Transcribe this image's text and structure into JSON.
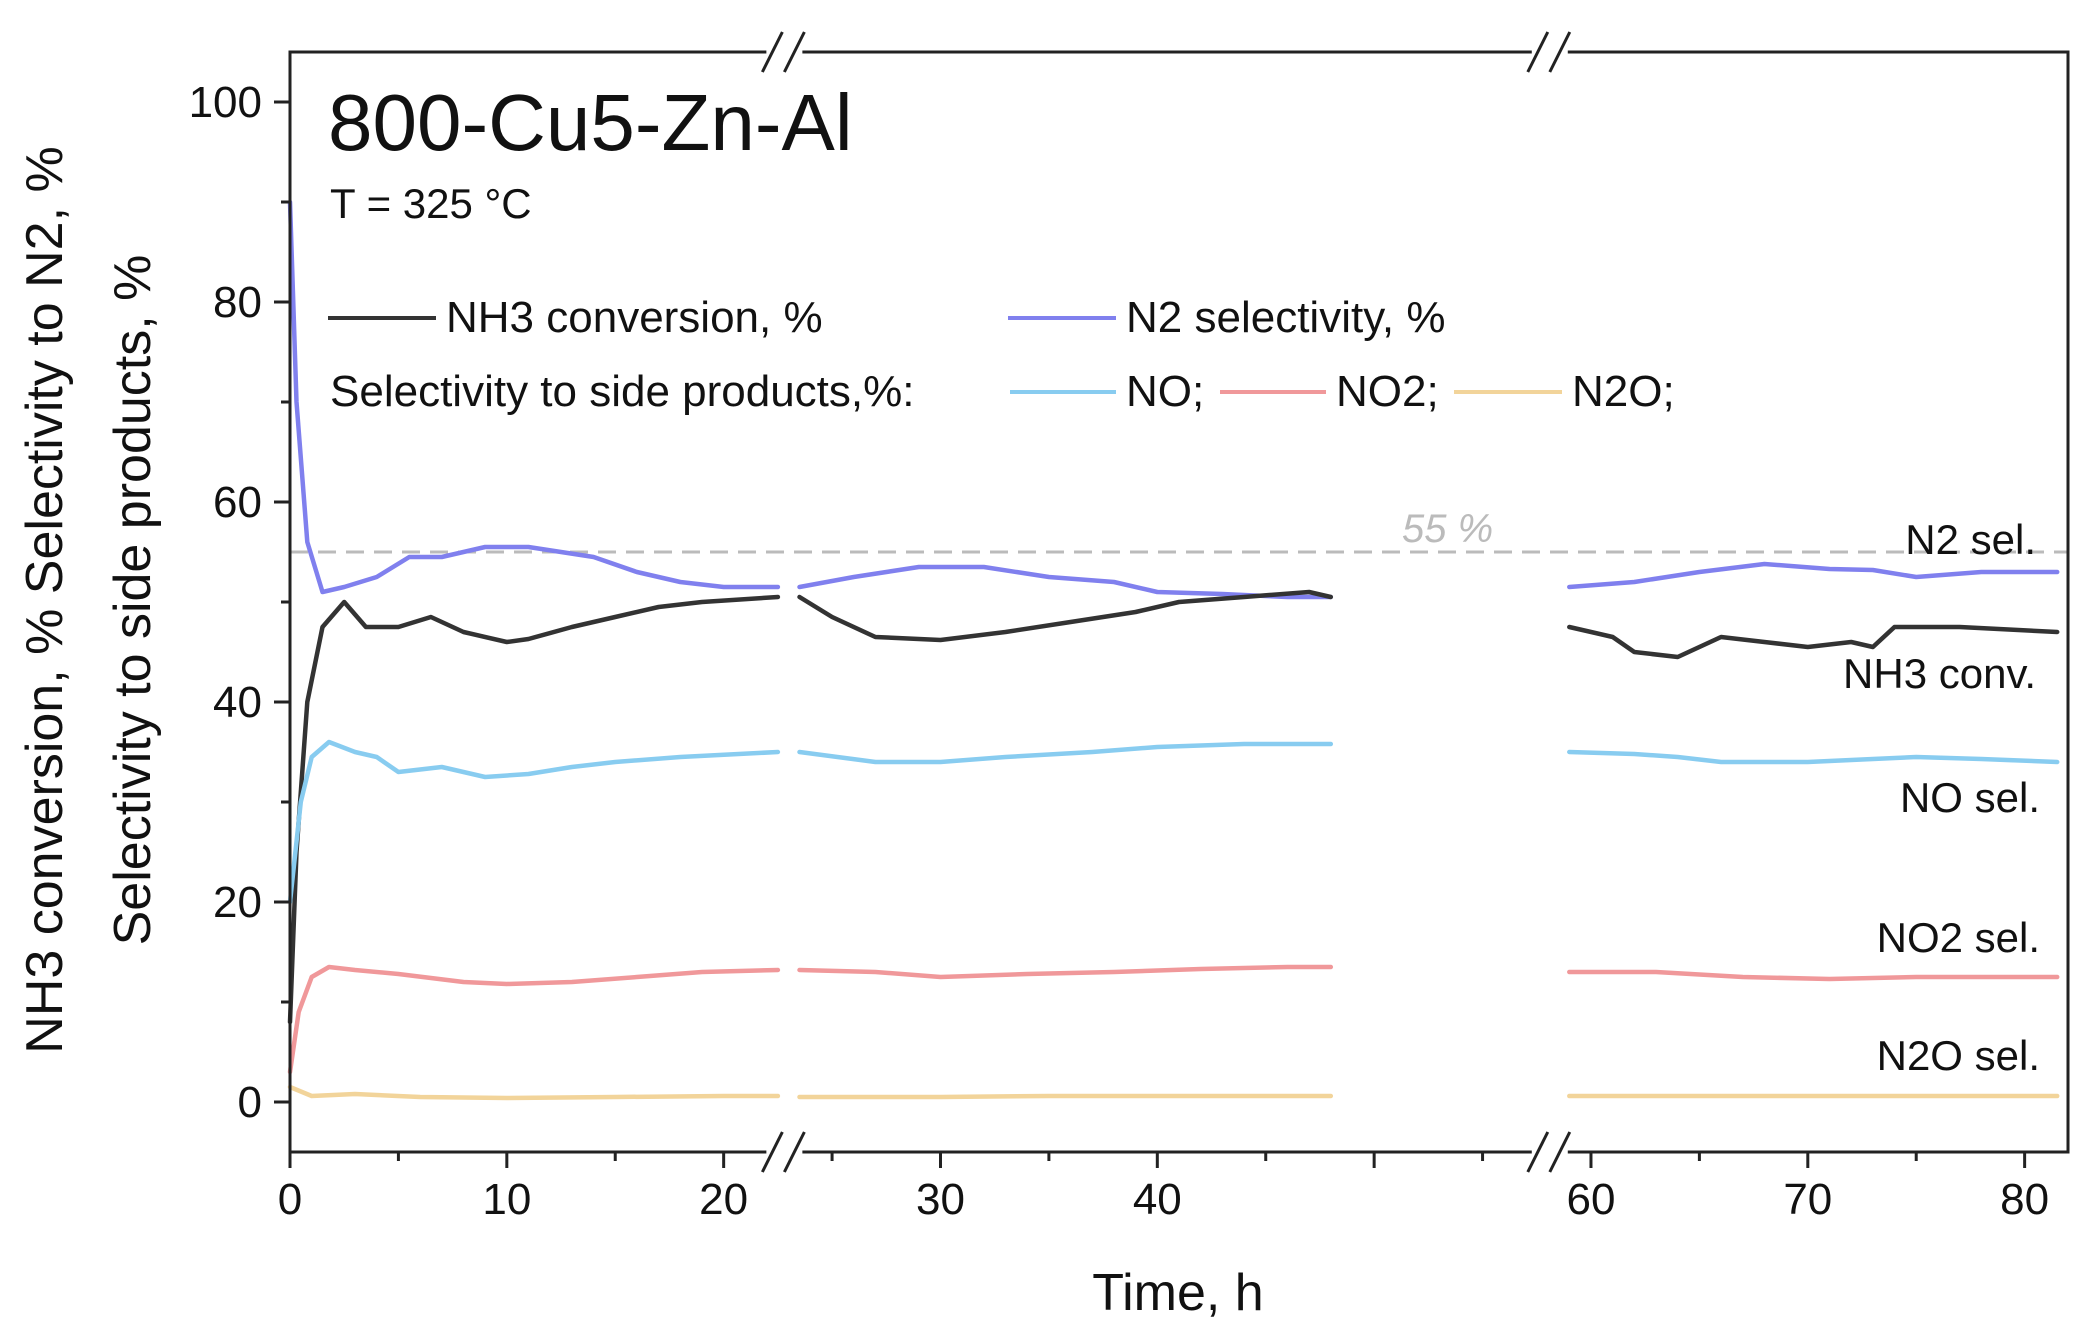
{
  "chart_data": {
    "type": "line",
    "title": "800-Cu5-Zn-Al",
    "subtitle": "T = 325 °C",
    "xlabel": "Time, h",
    "ylabel": [
      "NH3 conversion, % Selectivity to N2, %",
      "Selectivity to side products, %"
    ],
    "xlim": [
      0,
      82
    ],
    "ylim": [
      -5,
      105
    ],
    "x_ticks": [
      0,
      10,
      20,
      30,
      40,
      50,
      60,
      70,
      80
    ],
    "x_tick_labels": [
      "0",
      "10",
      "20",
      "30",
      "40",
      "",
      "60",
      "70",
      "80"
    ],
    "y_ticks": [
      0,
      20,
      40,
      60,
      80,
      100
    ],
    "y_tick_labels": [
      "0",
      "20",
      "40",
      "60",
      "80",
      "100"
    ],
    "axis_breaks_x": [
      22.8,
      58.1
    ],
    "reference_line": {
      "y": 55,
      "label": "55 %",
      "style": "dashed"
    },
    "legend": {
      "line1": "NH3 conversion, %",
      "line2": "N2 selectivity, %",
      "side_label": "Selectivity to side products,%:",
      "side_items": [
        "NO;",
        "NO2;",
        "N2O;"
      ]
    },
    "series": [
      {
        "name": "N2 selectivity, %",
        "end_label": "N2 sel.",
        "color": "#8080ee",
        "segments": [
          [
            [
              0,
              90
            ],
            [
              0.3,
              70
            ],
            [
              0.8,
              56
            ],
            [
              1.5,
              51
            ],
            [
              2.5,
              51.5
            ],
            [
              4,
              52.5
            ],
            [
              5.5,
              54.5
            ],
            [
              7,
              54.5
            ],
            [
              9,
              55.5
            ],
            [
              11,
              55.5
            ],
            [
              14,
              54.5
            ],
            [
              16,
              53
            ],
            [
              18,
              52
            ],
            [
              20,
              51.5
            ],
            [
              22.5,
              51.5
            ]
          ],
          [
            [
              23.5,
              51.5
            ],
            [
              26,
              52.5
            ],
            [
              29,
              53.5
            ],
            [
              32,
              53.5
            ],
            [
              35,
              52.5
            ],
            [
              38,
              52
            ],
            [
              40,
              51
            ],
            [
              43,
              50.8
            ],
            [
              46,
              50.5
            ],
            [
              48,
              50.5
            ]
          ],
          [
            [
              59,
              51.5
            ],
            [
              62,
              52
            ],
            [
              65,
              53
            ],
            [
              68,
              53.8
            ],
            [
              71,
              53.3
            ],
            [
              73,
              53.2
            ],
            [
              75,
              52.5
            ],
            [
              78,
              53
            ],
            [
              81.5,
              53
            ]
          ]
        ]
      },
      {
        "name": "NH3 conversion, %",
        "end_label": "NH3 conv.",
        "color": "#333333",
        "segments": [
          [
            [
              0,
              8
            ],
            [
              0.3,
              25
            ],
            [
              0.8,
              40
            ],
            [
              1.5,
              47.5
            ],
            [
              2.5,
              50
            ],
            [
              3.5,
              47.5
            ],
            [
              5,
              47.5
            ],
            [
              6.5,
              48.5
            ],
            [
              8,
              47
            ],
            [
              10,
              46
            ],
            [
              11,
              46.3
            ],
            [
              13,
              47.5
            ],
            [
              15,
              48.5
            ],
            [
              17,
              49.5
            ],
            [
              19,
              50
            ],
            [
              22.5,
              50.5
            ]
          ],
          [
            [
              23.5,
              50.5
            ],
            [
              25,
              48.5
            ],
            [
              27,
              46.5
            ],
            [
              30,
              46.2
            ],
            [
              33,
              47
            ],
            [
              36,
              48
            ],
            [
              39,
              49
            ],
            [
              41,
              50
            ],
            [
              44,
              50.5
            ],
            [
              47,
              51
            ],
            [
              48,
              50.5
            ]
          ],
          [
            [
              59,
              47.5
            ],
            [
              61,
              46.5
            ],
            [
              62,
              45
            ],
            [
              64,
              44.5
            ],
            [
              66,
              46.5
            ],
            [
              68,
              46
            ],
            [
              70,
              45.5
            ],
            [
              72,
              46
            ],
            [
              73,
              45.5
            ],
            [
              74,
              47.5
            ],
            [
              77,
              47.5
            ],
            [
              81.5,
              47
            ]
          ]
        ]
      },
      {
        "name": "NO",
        "end_label": "NO sel.",
        "color": "#88ccf0",
        "segments": [
          [
            [
              0,
              20
            ],
            [
              0.5,
              30
            ],
            [
              1,
              34.5
            ],
            [
              1.8,
              36
            ],
            [
              3,
              35
            ],
            [
              4,
              34.5
            ],
            [
              5,
              33
            ],
            [
              7,
              33.5
            ],
            [
              9,
              32.5
            ],
            [
              11,
              32.8
            ],
            [
              13,
              33.5
            ],
            [
              15,
              34
            ],
            [
              18,
              34.5
            ],
            [
              22.5,
              35
            ]
          ],
          [
            [
              23.5,
              35
            ],
            [
              27,
              34
            ],
            [
              30,
              34
            ],
            [
              33,
              34.5
            ],
            [
              37,
              35
            ],
            [
              40,
              35.5
            ],
            [
              44,
              35.8
            ],
            [
              48,
              35.8
            ]
          ],
          [
            [
              59,
              35
            ],
            [
              62,
              34.8
            ],
            [
              64,
              34.5
            ],
            [
              66,
              34
            ],
            [
              68,
              34
            ],
            [
              70,
              34
            ],
            [
              73,
              34.3
            ],
            [
              75,
              34.5
            ],
            [
              78,
              34.3
            ],
            [
              81.5,
              34
            ]
          ]
        ]
      },
      {
        "name": "NO2",
        "end_label": "NO2 sel.",
        "color": "#f0989a",
        "segments": [
          [
            [
              0,
              3
            ],
            [
              0.4,
              9
            ],
            [
              1,
              12.5
            ],
            [
              1.8,
              13.5
            ],
            [
              3,
              13.2
            ],
            [
              5,
              12.8
            ],
            [
              8,
              12
            ],
            [
              10,
              11.8
            ],
            [
              13,
              12
            ],
            [
              16,
              12.5
            ],
            [
              19,
              13
            ],
            [
              22.5,
              13.2
            ]
          ],
          [
            [
              23.5,
              13.2
            ],
            [
              27,
              13
            ],
            [
              30,
              12.5
            ],
            [
              34,
              12.8
            ],
            [
              38,
              13
            ],
            [
              42,
              13.3
            ],
            [
              46,
              13.5
            ],
            [
              48,
              13.5
            ]
          ],
          [
            [
              59,
              13
            ],
            [
              63,
              13
            ],
            [
              67,
              12.5
            ],
            [
              71,
              12.3
            ],
            [
              75,
              12.5
            ],
            [
              78,
              12.5
            ],
            [
              81.5,
              12.5
            ]
          ]
        ]
      },
      {
        "name": "N2O",
        "end_label": "N2O sel.",
        "color": "#f2d49a",
        "segments": [
          [
            [
              0,
              1.5
            ],
            [
              1,
              0.6
            ],
            [
              3,
              0.8
            ],
            [
              6,
              0.5
            ],
            [
              10,
              0.4
            ],
            [
              15,
              0.5
            ],
            [
              20,
              0.6
            ],
            [
              22.5,
              0.6
            ]
          ],
          [
            [
              23.5,
              0.5
            ],
            [
              30,
              0.5
            ],
            [
              35,
              0.6
            ],
            [
              40,
              0.6
            ],
            [
              45,
              0.6
            ],
            [
              48,
              0.6
            ]
          ],
          [
            [
              59,
              0.6
            ],
            [
              65,
              0.6
            ],
            [
              70,
              0.6
            ],
            [
              75,
              0.6
            ],
            [
              81.5,
              0.6
            ]
          ]
        ]
      }
    ]
  }
}
